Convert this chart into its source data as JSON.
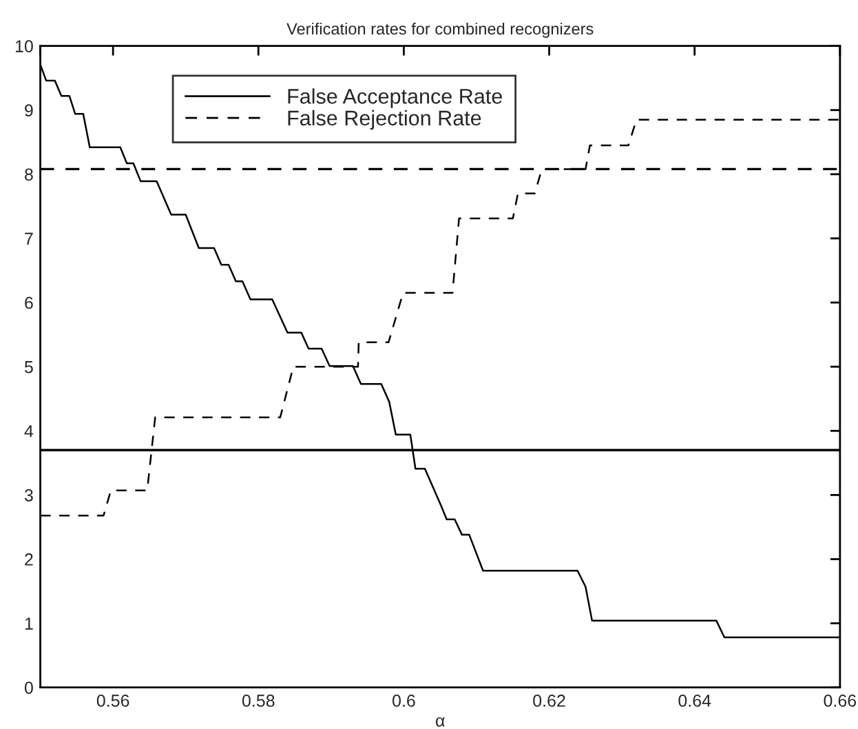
{
  "chart_data": {
    "type": "line",
    "title": "Verification rates for combined recognizers",
    "xlabel": "α",
    "xlim": [
      0.55,
      0.66
    ],
    "xticks": [
      {
        "value": 0.55,
        "label": null
      },
      0.56,
      0.58,
      {
        "value": 0.6,
        "label": "0.6"
      },
      0.62,
      0.64,
      0.66
    ],
    "ylim": [
      0,
      10
    ],
    "yticks": [
      0,
      1,
      2,
      3,
      4,
      5,
      6,
      7,
      8,
      9,
      10
    ],
    "grid": false,
    "legend": "top",
    "marker": "none",
    "series": [
      {
        "name": "False Acceptance Rate",
        "color": "#000000",
        "line_style": "solid",
        "x": [
          0.55,
          0.5508,
          0.552,
          0.5529,
          0.554,
          0.5548,
          0.5559,
          0.5568,
          0.561,
          0.5619,
          0.5628,
          0.5638,
          0.566,
          0.568,
          0.57,
          0.5718,
          0.5739,
          0.5749,
          0.5759,
          0.5769,
          0.5778,
          0.5789,
          0.5819,
          0.584,
          0.5859,
          0.5869,
          0.5887,
          0.5898,
          0.593,
          0.5941,
          0.5969,
          0.598,
          0.5989,
          0.6009,
          0.6016,
          0.6029,
          0.6051,
          0.6059,
          0.607,
          0.608,
          0.609,
          0.6109,
          0.6239,
          0.625,
          0.6259,
          0.643,
          0.6441,
          0.66
        ],
        "values": [
          9.71,
          9.46,
          9.46,
          9.22,
          9.22,
          8.94,
          8.94,
          8.42,
          8.42,
          8.17,
          8.17,
          7.89,
          7.89,
          7.37,
          7.37,
          6.85,
          6.85,
          6.59,
          6.59,
          6.33,
          6.33,
          6.05,
          6.05,
          5.53,
          5.53,
          5.28,
          5.28,
          5.01,
          5.01,
          4.73,
          4.73,
          4.45,
          3.94,
          3.94,
          3.41,
          3.41,
          2.84,
          2.62,
          2.62,
          2.38,
          2.38,
          1.82,
          1.82,
          1.57,
          1.04,
          1.04,
          0.78,
          0.78
        ]
      },
      {
        "name": "False Rejection Rate",
        "color": "#000000",
        "line_style": "dashed",
        "x": [
          0.55,
          0.5587,
          0.5597,
          0.5647,
          0.5658,
          0.583,
          0.5848,
          0.5937,
          0.5938,
          0.5979,
          0.5999,
          0.6067,
          0.6076,
          0.615,
          0.6157,
          0.618,
          0.619,
          0.625,
          0.6256,
          0.6309,
          0.632,
          0.66
        ],
        "values": [
          2.68,
          2.68,
          3.07,
          3.07,
          4.21,
          4.21,
          5.0,
          5.0,
          5.38,
          5.38,
          6.15,
          6.15,
          7.31,
          7.31,
          7.7,
          7.7,
          8.08,
          8.08,
          8.45,
          8.45,
          8.85,
          8.85
        ]
      }
    ],
    "ref_lines": [
      {
        "axis": "y",
        "value": 3.7,
        "color": "#000000",
        "line_style": "solid"
      },
      {
        "axis": "y",
        "value": 8.08,
        "color": "#000000",
        "line_style": "dashed"
      }
    ]
  }
}
